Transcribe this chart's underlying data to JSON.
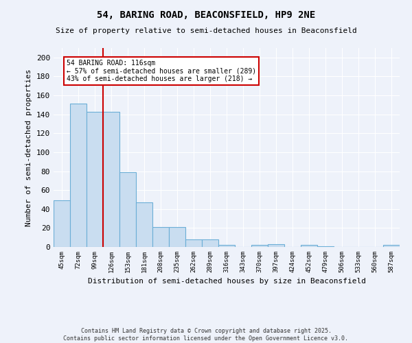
{
  "title1": "54, BARING ROAD, BEACONSFIELD, HP9 2NE",
  "title2": "Size of property relative to semi-detached houses in Beaconsfield",
  "xlabel": "Distribution of semi-detached houses by size in Beaconsfield",
  "ylabel": "Number of semi-detached properties",
  "categories": [
    "45sqm",
    "72sqm",
    "99sqm",
    "126sqm",
    "153sqm",
    "181sqm",
    "208sqm",
    "235sqm",
    "262sqm",
    "289sqm",
    "316sqm",
    "343sqm",
    "370sqm",
    "397sqm",
    "424sqm",
    "452sqm",
    "479sqm",
    "506sqm",
    "533sqm",
    "560sqm",
    "587sqm"
  ],
  "values": [
    49,
    151,
    143,
    143,
    79,
    47,
    21,
    21,
    8,
    8,
    2,
    0,
    2,
    3,
    0,
    2,
    1,
    0,
    0,
    0,
    2
  ],
  "bar_color": "#c9ddf0",
  "bar_edge_color": "#6baed6",
  "marker_label": "54 BARING ROAD: 116sqm",
  "annotation_line1": "← 57% of semi-detached houses are smaller (289)",
  "annotation_line2": "43% of semi-detached houses are larger (218) →",
  "annotation_box_color": "#ffffff",
  "annotation_box_edge_color": "#cc0000",
  "marker_line_color": "#cc0000",
  "ylim": [
    0,
    210
  ],
  "yticks": [
    0,
    20,
    40,
    60,
    80,
    100,
    120,
    140,
    160,
    180,
    200
  ],
  "background_color": "#eef2fa",
  "grid_color": "#ffffff",
  "footer_line1": "Contains HM Land Registry data © Crown copyright and database right 2025.",
  "footer_line2": "Contains public sector information licensed under the Open Government Licence v3.0."
}
